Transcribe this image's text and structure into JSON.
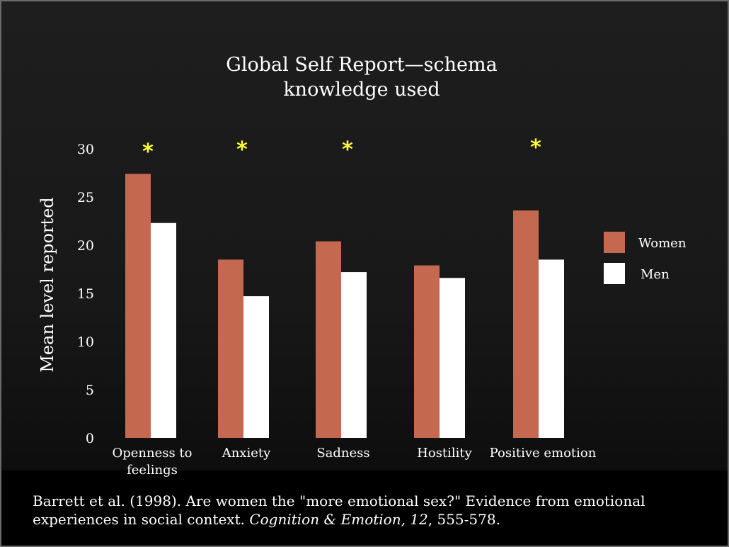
{
  "colors": {
    "women": "#c4694f",
    "men": "#ffffff",
    "significance_star": "#ffff33",
    "text": "#ffffff"
  },
  "chart_data": {
    "type": "bar",
    "title": [
      "Global Self Report—schema",
      "knowledge used"
    ],
    "ylabel": "Mean level reported",
    "xlabel": "",
    "ylim": [
      0,
      30
    ],
    "yticks": [
      "0",
      "5",
      "10",
      "15",
      "20",
      "25",
      "30"
    ],
    "categories": [
      [
        "Openness to",
        "feelings"
      ],
      [
        "Anxiety"
      ],
      [
        "Sadness"
      ],
      [
        "Hostility"
      ],
      [
        "Positive emotion"
      ]
    ],
    "series": [
      {
        "name": "Women",
        "values": [
          27.4,
          18.5,
          20.4,
          17.9,
          23.6
        ]
      },
      {
        "name": "Men",
        "values": [
          22.3,
          14.7,
          17.2,
          16.6,
          18.5
        ]
      }
    ],
    "significance_marker": "*",
    "significant": [
      true,
      true,
      true,
      false,
      true
    ],
    "legend_position": "right",
    "grid": false
  },
  "citation": {
    "pre_italic": "Barrett et al. (1998). Are women the \"more emotional sex?\" Evidence from emotional experiences in social context. ",
    "journal": "Cognition & Emotion, 12",
    "post_italic": ", 555-578."
  }
}
